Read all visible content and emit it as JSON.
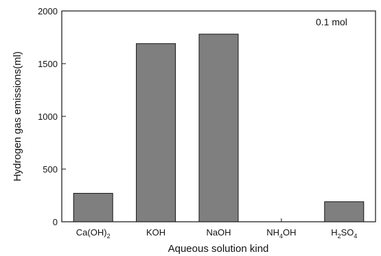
{
  "chart_data": {
    "type": "bar",
    "title": "",
    "xlabel": "Aqueous solution kind",
    "ylabel": "Hydrogen gas emissions(ml)",
    "annotation": "0.1 mol",
    "categories": [
      {
        "base": "Ca(OH)",
        "sub": "2",
        "tail": ""
      },
      {
        "base": "KOH",
        "sub": "",
        "tail": ""
      },
      {
        "base": "NaOH",
        "sub": "",
        "tail": ""
      },
      {
        "base": "NH",
        "sub": "4",
        "tail": "OH"
      },
      {
        "base": "H",
        "sub": "2",
        "tail": "SO",
        "sub2": "4"
      }
    ],
    "values": [
      270,
      1690,
      1780,
      0,
      190
    ],
    "ylim": [
      0,
      2000
    ],
    "yticks": [
      0,
      500,
      1000,
      1500,
      2000
    ],
    "grid": false,
    "colors": {
      "bar_fill": "#7f7f7f",
      "bar_stroke": "#111111",
      "axis": "#111111"
    }
  }
}
